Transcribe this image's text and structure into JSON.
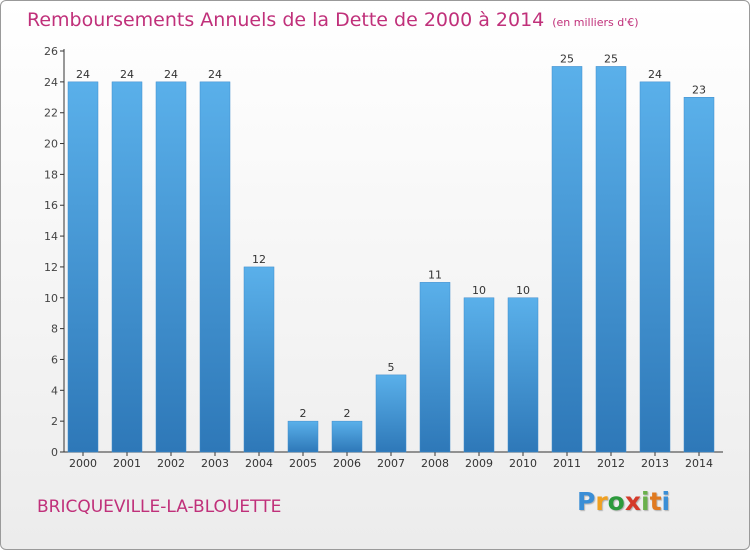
{
  "chart_data": {
    "type": "bar",
    "title": "Remboursements Annuels de la Dette de 2000 à 2014",
    "unit_note": "(en milliers d'€)",
    "categories": [
      "2000",
      "2001",
      "2002",
      "2003",
      "2004",
      "2005",
      "2006",
      "2007",
      "2008",
      "2009",
      "2010",
      "2011",
      "2012",
      "2013",
      "2014"
    ],
    "values": [
      24,
      24,
      24,
      24,
      12,
      2,
      2,
      5,
      11,
      10,
      10,
      25,
      25,
      24,
      23
    ],
    "xlabel": "",
    "ylabel": "",
    "ylim": [
      0,
      26
    ],
    "yticks": [
      0,
      2,
      4,
      6,
      8,
      10,
      12,
      14,
      16,
      18,
      20,
      22,
      24,
      26
    ],
    "grid": false,
    "bar_color": "#4a9ee0",
    "title_color": "#c0307a"
  },
  "footer": {
    "commune": "BRICQUEVILLE-LA-BLOUETTE",
    "logo_letters": [
      "P",
      "r",
      "o",
      "x",
      "i",
      "t",
      "i"
    ]
  }
}
